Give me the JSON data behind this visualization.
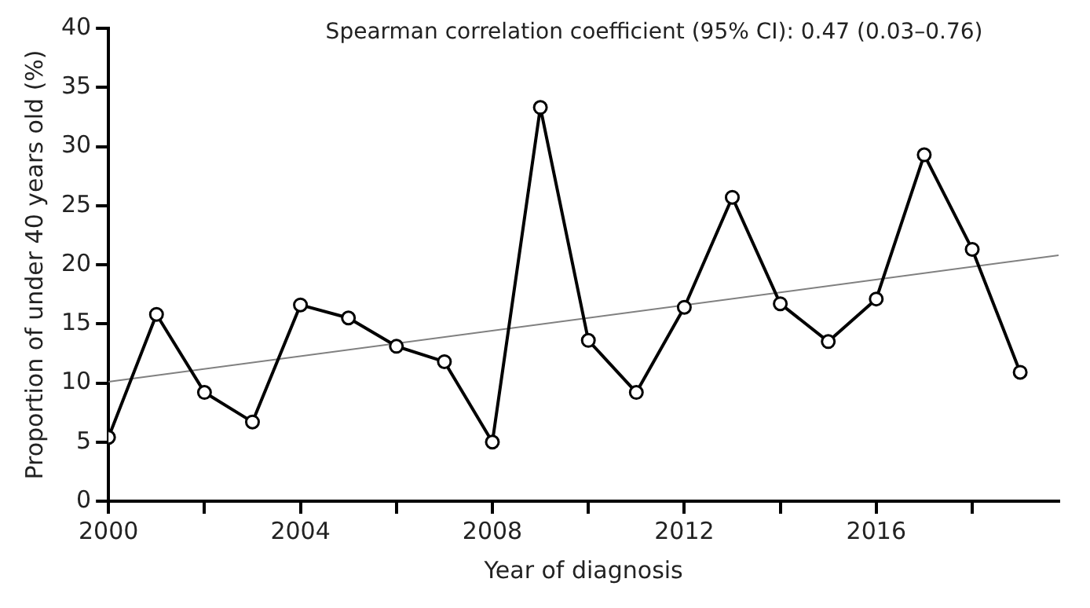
{
  "chart_data": {
    "type": "line",
    "xlabel": "Year of diagnosis",
    "ylabel": "Proportion of under 40 years old (%)",
    "annotations": [
      "Spearman correlation coefficient (95% CI): 0.47 (0.03–0.76)"
    ],
    "x": [
      2000,
      2001,
      2002,
      2003,
      2004,
      2005,
      2006,
      2007,
      2008,
      2009,
      2010,
      2011,
      2012,
      2013,
      2014,
      2015,
      2016,
      2017,
      2018,
      2019
    ],
    "series": [
      {
        "color": "#000000",
        "values": [
          5.4,
          15.8,
          9.2,
          6.7,
          16.6,
          15.5,
          13.1,
          11.8,
          5.0,
          33.3,
          13.6,
          9.2,
          16.4,
          25.7,
          16.7,
          13.5,
          17.1,
          29.3,
          21.3,
          10.9
        ]
      },
      {
        "type": "line",
        "x": [
          2000,
          2019.8
        ],
        "color": "#808080",
        "marker": "none",
        "values": [
          10.1,
          20.8
        ]
      }
    ],
    "xlim": [
      2000,
      2019.8
    ],
    "xticks": [
      2000,
      {
        "value": 2002,
        "label": null
      },
      2004,
      {
        "value": 2006,
        "label": null
      },
      2008,
      {
        "value": 2010,
        "label": null
      },
      2012,
      {
        "value": 2014,
        "label": null
      },
      2016,
      {
        "value": 2018,
        "label": null
      }
    ],
    "ylim": [
      0,
      40
    ],
    "yticks": [
      0,
      5,
      10,
      15,
      20,
      25,
      30,
      35,
      40
    ],
    "grid": false,
    "legend": false,
    "marker": "circle",
    "line_style": "solid"
  }
}
